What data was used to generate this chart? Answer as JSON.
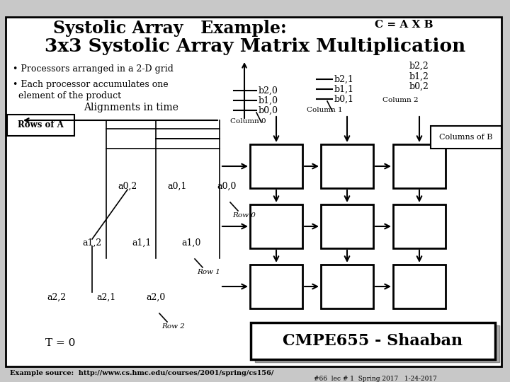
{
  "title_line1": "Systolic Array   Example:",
  "title_line2": "3x3 Systolic Array Matrix Multiplication",
  "subtitle": "C = A X B",
  "bg_color": "#c8c8c8",
  "bullet1": "• Processors arranged in a 2-D grid",
  "bullet2_line1": "• Each processor accumulates one",
  "bullet2_line2": "  element of the product",
  "alignment_label": "Alignments in time",
  "rows_of_a": "Rows of A",
  "columns_of_b": "Columns of B",
  "column0": "Column 0",
  "column1": "Column 1",
  "column2": "Column 2",
  "t_label": "T = 0",
  "footer_left": "Example source:  http://www.cs.hmc.edu/courses/2001/spring/cs156/",
  "footer_right": "#66  lec # 1  Spring 2017   1-24-2017",
  "cmpe_label": "CMPE655 - Shaaban",
  "row0_label": "Row 0",
  "row1_label": "Row 1",
  "row2_label": "Row 2",
  "a_labels_row0": [
    "a0,2",
    "a0,1",
    "a0,0"
  ],
  "a_labels_row1": [
    "a1,2",
    "a1,1",
    "a1,0"
  ],
  "a_labels_row2": [
    "a2,2",
    "a2,1",
    "a2,0"
  ],
  "b_col0": [
    "b2,0",
    "b1,0",
    "b0,0"
  ],
  "b_col1": [
    "b2,1",
    "b1,1",
    "b0,1"
  ],
  "b_col2": [
    "b2,2",
    "b1,2",
    "b0,2"
  ]
}
